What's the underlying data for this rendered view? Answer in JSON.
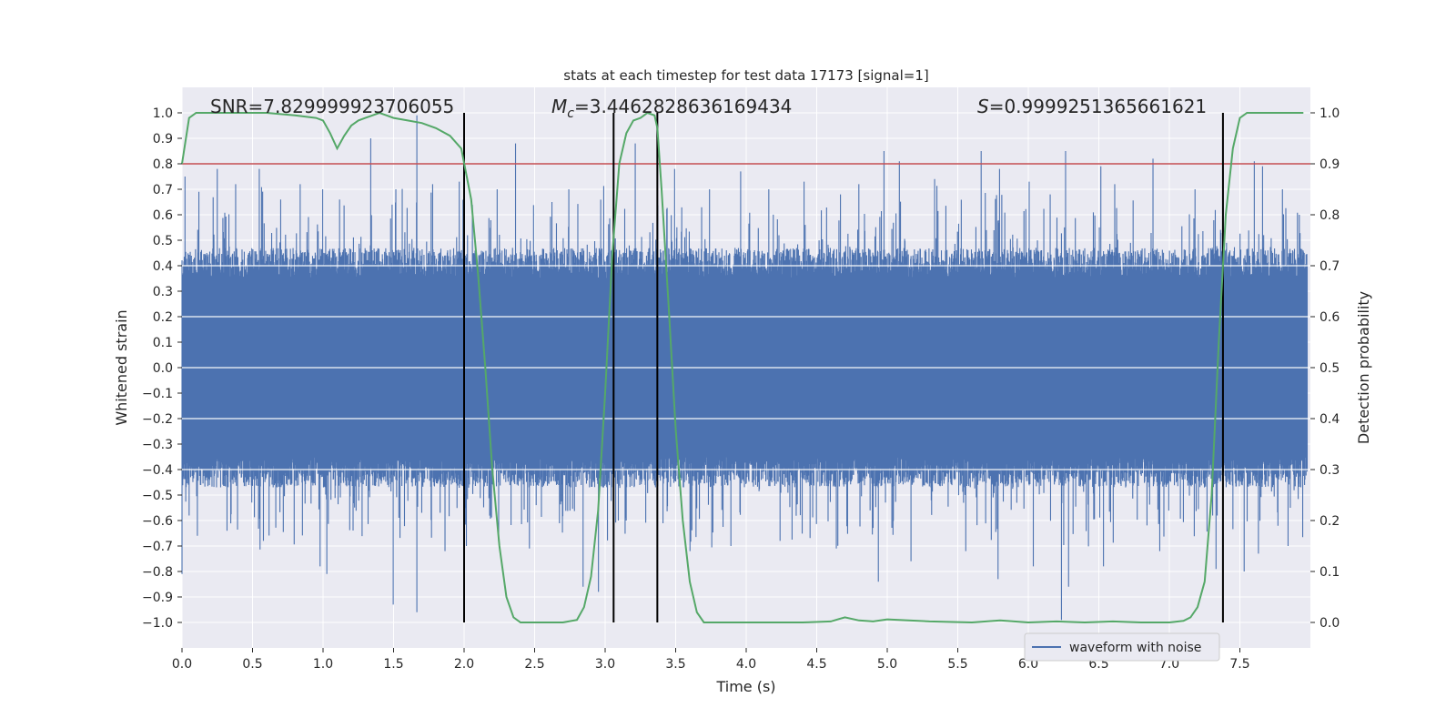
{
  "chart_data": {
    "type": "line",
    "title": "stats at each timestep for test data 17173 [signal=1]",
    "xlabel": "Time (s)",
    "ylabel_left": "Whitened strain",
    "ylabel_right": "Detection probability",
    "xlim": [
      0.0,
      8.0
    ],
    "ylim_left": [
      -1.1,
      1.1
    ],
    "ylim_right": [
      -0.05,
      1.05
    ],
    "x_ticks": [
      "0.0",
      "0.5",
      "1.0",
      "1.5",
      "2.0",
      "2.5",
      "3.0",
      "3.5",
      "4.0",
      "4.5",
      "5.0",
      "5.5",
      "6.0",
      "6.5",
      "7.0",
      "7.5"
    ],
    "y_left_ticks": [
      "1.0",
      "0.9",
      "0.8",
      "0.7",
      "0.6",
      "0.5",
      "0.4",
      "0.3",
      "0.2",
      "0.1",
      "0.0",
      "−0.1",
      "−0.2",
      "−0.3",
      "−0.4",
      "−0.5",
      "−0.6",
      "−0.7",
      "−0.8",
      "−0.9",
      "−1.0"
    ],
    "y_right_ticks": [
      "1.0",
      "0.9",
      "0.8",
      "0.7",
      "0.6",
      "0.5",
      "0.4",
      "0.3",
      "0.2",
      "0.1",
      "0.0"
    ],
    "grid": true,
    "annotations": {
      "snr": "SNR=7.829999923706055",
      "mc_symbol": "M",
      "mc_sub": "c",
      "mc_value": "=3.4462828636169434",
      "s_symbol": "S",
      "s_value": "=0.9999251365661621"
    },
    "threshold": {
      "y_right": 0.9,
      "color": "#c44e52"
    },
    "vertical_markers": [
      2.0,
      3.06,
      3.37,
      7.38
    ],
    "series": [
      {
        "name": "waveform with noise",
        "axis": "left",
        "color": "#4c72b0",
        "kind": "noise-envelope",
        "typical_amplitude": 0.35,
        "peaks": [
          [
            0.02,
            0.75
          ],
          [
            0.12,
            0.69
          ],
          [
            0.25,
            0.78
          ],
          [
            0.38,
            0.72
          ],
          [
            0.55,
            0.78
          ],
          [
            0.7,
            0.66
          ],
          [
            0.84,
            0.72
          ],
          [
            1.0,
            0.7
          ],
          [
            1.12,
            0.66
          ],
          [
            1.34,
            0.9
          ],
          [
            1.52,
            0.7
          ],
          [
            1.67,
            0.99
          ],
          [
            1.78,
            0.72
          ],
          [
            1.97,
            0.73
          ],
          [
            2.24,
            0.7
          ],
          [
            2.37,
            0.88
          ],
          [
            2.63,
            0.65
          ],
          [
            2.75,
            0.7
          ],
          [
            3.22,
            0.88
          ],
          [
            3.5,
            0.78
          ],
          [
            3.75,
            0.7
          ],
          [
            3.97,
            0.77
          ],
          [
            4.17,
            0.7
          ],
          [
            4.42,
            0.73
          ],
          [
            4.68,
            0.68
          ],
          [
            4.81,
            0.72
          ],
          [
            4.99,
            0.85
          ],
          [
            5.1,
            0.81
          ],
          [
            5.35,
            0.74
          ],
          [
            5.68,
            0.85
          ],
          [
            5.81,
            0.78
          ],
          [
            6.02,
            0.73
          ],
          [
            6.17,
            0.68
          ],
          [
            6.28,
            0.85
          ],
          [
            6.53,
            0.79
          ],
          [
            6.63,
            0.72
          ],
          [
            6.9,
            0.82
          ],
          [
            7.2,
            0.7
          ],
          [
            7.4,
            0.77
          ],
          [
            7.62,
            0.81
          ],
          [
            7.68,
            0.79
          ],
          [
            7.82,
            0.7
          ],
          [
            7.94,
            0.6
          ]
        ],
        "troughs": [
          [
            0.0,
            -0.81
          ],
          [
            0.11,
            -0.66
          ],
          [
            0.32,
            -0.64
          ],
          [
            0.58,
            -0.68
          ],
          [
            0.98,
            -0.78
          ],
          [
            1.03,
            -0.81
          ],
          [
            1.5,
            -0.93
          ],
          [
            1.67,
            -0.96
          ],
          [
            1.87,
            -0.72
          ],
          [
            2.02,
            -0.7
          ],
          [
            2.25,
            -0.68
          ],
          [
            2.47,
            -0.71
          ],
          [
            2.85,
            -0.86
          ],
          [
            2.96,
            -0.88
          ],
          [
            3.1,
            -0.6
          ],
          [
            3.61,
            -0.72
          ],
          [
            3.9,
            -0.7
          ],
          [
            4.25,
            -0.68
          ],
          [
            4.65,
            -0.71
          ],
          [
            4.95,
            -0.84
          ],
          [
            5.18,
            -0.76
          ],
          [
            5.57,
            -0.72
          ],
          [
            5.8,
            -0.83
          ],
          [
            6.05,
            -0.78
          ],
          [
            6.25,
            -0.99
          ],
          [
            6.3,
            -0.86
          ],
          [
            6.55,
            -0.78
          ],
          [
            6.95,
            -0.72
          ],
          [
            7.35,
            -0.79
          ],
          [
            7.55,
            -0.8
          ],
          [
            7.65,
            -0.73
          ],
          [
            7.86,
            -0.7
          ]
        ]
      },
      {
        "name": "detection probability",
        "axis": "right",
        "color": "#55a868",
        "x": [
          0.0,
          0.05,
          0.1,
          0.2,
          0.4,
          0.6,
          0.8,
          0.95,
          1.0,
          1.05,
          1.1,
          1.15,
          1.2,
          1.25,
          1.3,
          1.35,
          1.4,
          1.45,
          1.5,
          1.6,
          1.7,
          1.8,
          1.9,
          1.98,
          2.05,
          2.1,
          2.15,
          2.2,
          2.25,
          2.3,
          2.35,
          2.4,
          2.5,
          2.6,
          2.7,
          2.8,
          2.85,
          2.9,
          2.95,
          3.0,
          3.05,
          3.1,
          3.15,
          3.2,
          3.25,
          3.3,
          3.35,
          3.37,
          3.4,
          3.45,
          3.5,
          3.55,
          3.6,
          3.65,
          3.7,
          3.75,
          3.8,
          4.0,
          4.2,
          4.4,
          4.6,
          4.65,
          4.7,
          4.8,
          4.9,
          5.0,
          5.3,
          5.6,
          5.8,
          6.0,
          6.2,
          6.4,
          6.6,
          6.8,
          7.0,
          7.1,
          7.15,
          7.2,
          7.25,
          7.3,
          7.35,
          7.4,
          7.45,
          7.5,
          7.55,
          7.6,
          7.95
        ],
        "y": [
          0.9,
          0.99,
          1.0,
          1.0,
          1.0,
          1.0,
          0.995,
          0.99,
          0.985,
          0.96,
          0.93,
          0.955,
          0.975,
          0.985,
          0.99,
          0.995,
          1.0,
          0.995,
          0.99,
          0.985,
          0.98,
          0.97,
          0.955,
          0.93,
          0.83,
          0.68,
          0.5,
          0.3,
          0.15,
          0.05,
          0.01,
          0.0,
          0.0,
          0.0,
          0.0,
          0.005,
          0.03,
          0.09,
          0.22,
          0.45,
          0.72,
          0.9,
          0.96,
          0.985,
          0.99,
          1.0,
          0.995,
          0.97,
          0.85,
          0.62,
          0.38,
          0.2,
          0.08,
          0.02,
          0.0,
          0.0,
          0.0,
          0.0,
          0.0,
          0.0,
          0.002,
          0.006,
          0.01,
          0.004,
          0.002,
          0.006,
          0.002,
          0.0,
          0.004,
          0.0,
          0.002,
          0.0,
          0.002,
          0.0,
          0.0,
          0.003,
          0.01,
          0.03,
          0.08,
          0.25,
          0.55,
          0.8,
          0.93,
          0.99,
          1.0,
          1.0,
          1.0
        ]
      }
    ],
    "legend": {
      "entries": [
        "waveform with noise"
      ],
      "placement": "lower-right"
    }
  }
}
